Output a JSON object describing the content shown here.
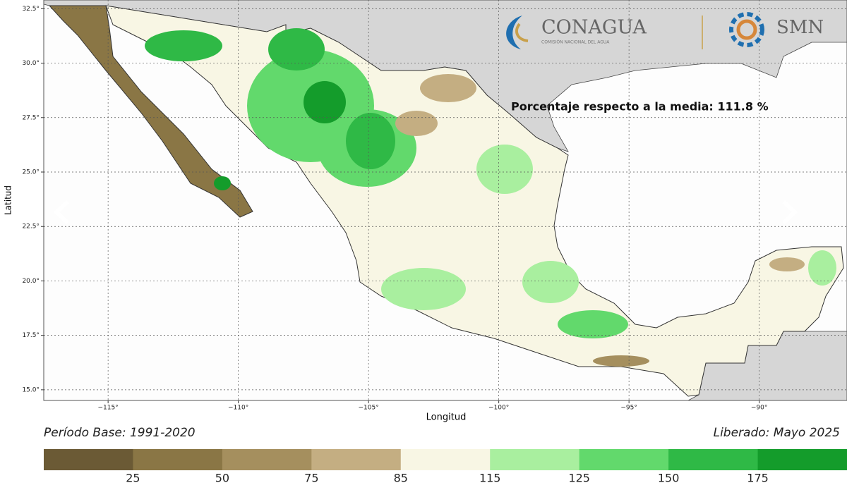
{
  "logos": {
    "conagua": "CONAGUA",
    "conagua_sub": "COMISIÓN NACIONAL DEL AGUA",
    "smn": "SMN"
  },
  "map": {
    "annotation": "Porcentaje respecto a la media: 111.8 %",
    "xlabel": "Longitud",
    "ylabel": "Latitud",
    "xlim": [
      -117.47,
      -86.63
    ],
    "ylim": [
      14.51,
      32.9
    ],
    "xticks": [
      {
        "value": -115,
        "label": "−115°"
      },
      {
        "value": -110,
        "label": "−110°"
      },
      {
        "value": -105,
        "label": "−105°"
      },
      {
        "value": -100,
        "label": "−100°"
      },
      {
        "value": -95,
        "label": "−95°"
      },
      {
        "value": -90,
        "label": "−90°"
      }
    ],
    "yticks": [
      {
        "value": 15,
        "label": "15.0°"
      },
      {
        "value": 17.5,
        "label": "17.5°"
      },
      {
        "value": 20,
        "label": "20.0°"
      },
      {
        "value": 22.5,
        "label": "22.5°"
      },
      {
        "value": 25,
        "label": "25.0°"
      },
      {
        "value": 27.5,
        "label": "27.5°"
      },
      {
        "value": 30,
        "label": "30.0°"
      },
      {
        "value": 32.5,
        "label": "32.5°"
      }
    ],
    "grid": true
  },
  "footer": {
    "left": "Período Base: 1991-2020",
    "right": "Liberado: Mayo 2025"
  },
  "colorbar": {
    "colors": [
      "#6b5a35",
      "#8a7645",
      "#a58f5e",
      "#c4ae82",
      "#f8f6e4",
      "#a9ef9f",
      "#62d96c",
      "#2fb946",
      "#149c2b"
    ],
    "labels": [
      25,
      50,
      75,
      85,
      115,
      125,
      150,
      175
    ]
  }
}
